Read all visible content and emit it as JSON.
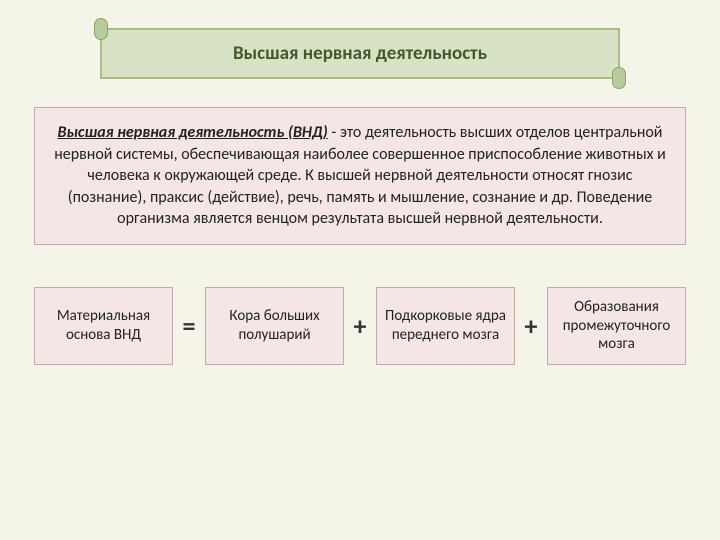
{
  "colors": {
    "slide_bg": "#f4f4e8",
    "title_bg": "#d7e3c4",
    "title_border": "#a8bb8a",
    "title_text": "#46592c",
    "scroll_fill": "#b9cb9c",
    "scroll_border": "#8aa665",
    "box_bg": "#f4e6e6",
    "box_border": "#c9a8a8",
    "body_text": "#222222",
    "op_text": "#333333"
  },
  "title": "Высшая нервная деятельность",
  "definition": {
    "term": "Высшая нервная деятельность (ВНД)",
    "text_after": " - это деятельность высших отделов центральной нервной системы, обеспечивающая наиболее совершенное приспособление животных и человека к окружающей среде. К высшей нервной деятельности относят гнозис (познание), праксис (действие), речь, память и мышление, сознание и др. Поведение организма является венцом результата высшей нервной деятельности."
  },
  "equation": {
    "lhs": "Материальная основа ВНД",
    "op1": "=",
    "term1": "Кора больших полушарий",
    "op2": "+",
    "term2": "Подкорковые ядра переднего мозга",
    "op3": "+",
    "term3": "Образования промежуточного мозга"
  },
  "style": {
    "title_fontsize": 19,
    "body_fontsize": 16,
    "eq_fontsize": 15,
    "op_fontsize": 26
  }
}
